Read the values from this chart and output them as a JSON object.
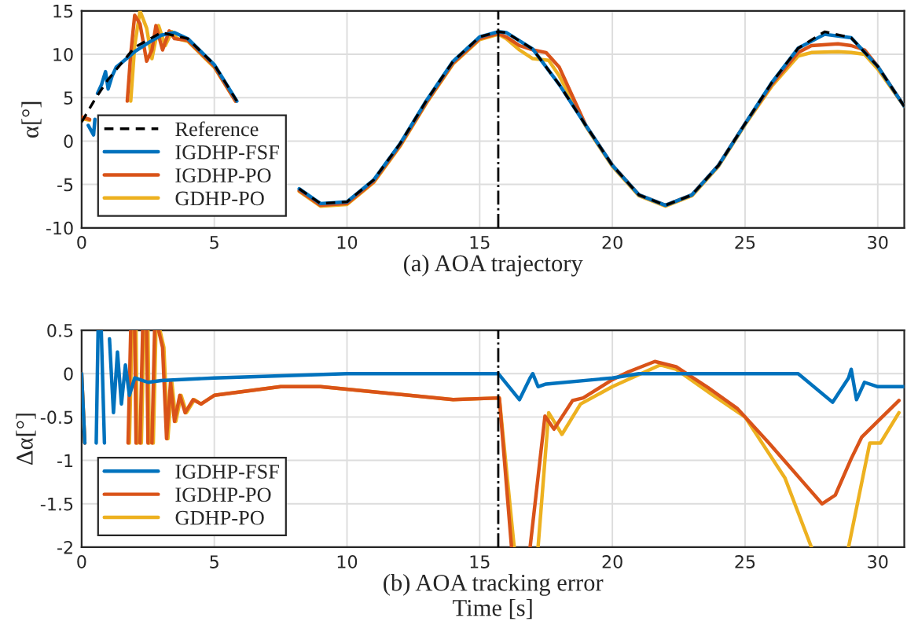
{
  "chart_data": [
    {
      "type": "line",
      "xlabel": "(a) AOA trajectory",
      "ylabel": "α[°]",
      "xlim": [
        0,
        31
      ],
      "xticks": [
        0,
        5,
        10,
        15,
        20,
        25,
        30
      ],
      "ylim": [
        -10,
        15
      ],
      "yticks": [
        -10,
        -5,
        0,
        5,
        10,
        15
      ],
      "grid": true,
      "legend": "lower left",
      "ref_lines": [
        {
          "axis": "x",
          "value": 15.7,
          "color": "#000000",
          "line_style": "dashdot"
        }
      ],
      "series": [
        {
          "name": "Reference",
          "color": "#000000",
          "line_style": "dashed",
          "x": [
            0,
            0.5,
            1,
            2,
            3,
            4,
            5,
            5.85,
            6,
            8.2,
            9,
            10,
            11,
            12,
            13,
            14,
            15,
            15.7,
            16,
            17,
            18,
            19,
            20,
            21,
            22,
            23,
            24,
            25,
            26,
            27,
            28,
            29,
            30,
            31
          ],
          "values": [
            2.2,
            4.8,
            7.1,
            10.8,
            12.5,
            11.8,
            8.8,
            4.6,
            null,
            -5.5,
            -7.2,
            -7.0,
            -4.5,
            -0.3,
            4.7,
            9.2,
            12.0,
            12.6,
            12.5,
            10.6,
            6.5,
            1.8,
            -2.8,
            -6.2,
            -7.4,
            -6.2,
            -2.8,
            2.0,
            6.7,
            10.7,
            12.6,
            11.9,
            8.6,
            4.0
          ]
        },
        {
          "name": "IGDHP-FSF",
          "color": "#0072bd",
          "x": [
            0.25,
            0.45,
            0.5,
            0.55,
            0.6,
            0.75,
            0.9,
            1.0,
            1.15,
            1.3,
            1.5,
            2,
            2.5,
            3,
            3.5,
            4,
            5,
            5.85,
            6,
            8.2,
            9,
            10,
            11,
            12,
            13,
            14,
            15,
            15.7,
            16,
            17,
            18,
            19,
            20,
            21,
            22,
            23,
            24,
            25,
            26,
            27,
            28,
            29,
            30,
            31
          ],
          "values": [
            1.8,
            0.7,
            2.5,
            null,
            5.5,
            6.5,
            8.0,
            6.0,
            7.5,
            8.5,
            9.0,
            10.3,
            11.3,
            12.2,
            12.5,
            11.8,
            8.8,
            4.6,
            null,
            -5.5,
            -7.2,
            -7.0,
            -4.5,
            -0.3,
            4.7,
            9.2,
            12.0,
            12.6,
            12.5,
            10.6,
            6.5,
            1.8,
            -2.8,
            -6.2,
            -7.4,
            -6.2,
            -2.8,
            2.0,
            6.7,
            10.7,
            12.3,
            11.9,
            8.6,
            4.0
          ]
        },
        {
          "name": "IGDHP-PO",
          "color": "#d95319",
          "x": [
            0,
            0.3,
            0.5,
            1.72,
            1.85,
            2.0,
            2.2,
            2.45,
            2.65,
            2.8,
            3.05,
            3.3,
            3.5,
            4,
            5,
            5.8,
            6,
            8.2,
            9,
            10,
            11,
            12,
            13,
            14,
            15,
            15.7,
            16,
            16.5,
            17,
            17.5,
            18,
            19,
            20,
            21,
            22,
            23,
            24,
            25,
            26,
            27,
            27.5,
            28.5,
            29,
            29.5,
            30,
            31
          ],
          "values": [
            2.8,
            2.5,
            null,
            4.6,
            10.0,
            14.5,
            13.5,
            9.2,
            10.5,
            13.3,
            10.5,
            12.7,
            11.8,
            11.6,
            8.6,
            4.6,
            null,
            -5.7,
            -7.4,
            -7.2,
            -4.7,
            -0.5,
            4.5,
            9.0,
            11.8,
            12.4,
            12.0,
            11.0,
            10.5,
            10.2,
            8.5,
            1.8,
            -2.8,
            -6.2,
            -7.4,
            -6.2,
            -2.8,
            2.0,
            6.5,
            10.2,
            11.0,
            11.2,
            11.0,
            10.5,
            8.6,
            4.0
          ]
        },
        {
          "name": "GDHP-PO",
          "color": "#edb120",
          "x": [
            0,
            0.3,
            0.5,
            1.85,
            2.0,
            2.2,
            2.45,
            2.65,
            2.9,
            3.15,
            3.4,
            3.6,
            4,
            5,
            5.8,
            6,
            8.2,
            9,
            10,
            11,
            12,
            13,
            14,
            15,
            15.7,
            16,
            16.5,
            17,
            17.6,
            18,
            19,
            20,
            21,
            22,
            23,
            24,
            25,
            26,
            27,
            27.5,
            28.5,
            29,
            29.5,
            30,
            31
          ],
          "values": [
            2.6,
            2.4,
            null,
            4.6,
            11.0,
            15.0,
            13.0,
            9.5,
            13.3,
            11.0,
            12.6,
            11.8,
            11.5,
            8.5,
            4.6,
            null,
            -5.8,
            -7.5,
            -7.3,
            -4.8,
            -0.6,
            4.4,
            8.9,
            11.7,
            12.3,
            11.8,
            10.5,
            9.5,
            9.3,
            7.5,
            1.7,
            -2.9,
            -6.3,
            -7.5,
            -6.3,
            -2.9,
            1.9,
            6.3,
            9.8,
            10.2,
            10.3,
            10.2,
            10.0,
            8.3,
            4.0
          ]
        }
      ]
    },
    {
      "type": "line",
      "xlabel": "(b) AOA tracking error\nTime [s]",
      "ylabel": "Δα[°]",
      "xlim": [
        0,
        31
      ],
      "xticks": [
        0,
        5,
        10,
        15,
        20,
        25,
        30
      ],
      "ylim": [
        -2,
        0.5
      ],
      "yticks": [
        -2,
        -1.5,
        -1,
        -0.5,
        0,
        0.5
      ],
      "grid": true,
      "legend": "lower left",
      "ref_lines": [
        {
          "axis": "x",
          "value": 15.7,
          "color": "#000000",
          "line_style": "dashdot"
        }
      ],
      "series": [
        {
          "name": "IGDHP-FSF",
          "color": "#0072bd",
          "x": [
            0,
            0.12,
            0.3,
            0.55,
            0.62,
            0.68,
            0.74,
            0.86,
            0.95,
            1.05,
            1.2,
            1.35,
            1.5,
            1.65,
            1.8,
            2.0,
            2.5,
            3,
            5,
            10,
            15.7,
            16.5,
            16.9,
            17.0,
            17.2,
            17.5,
            20,
            21,
            27,
            28.3,
            28.9,
            29.0,
            29.2,
            29.5,
            30,
            31
          ],
          "values": [
            0,
            -0.8,
            null,
            -0.8,
            0.5,
            null,
            0.5,
            -0.8,
            null,
            0.4,
            -0.45,
            0.25,
            -0.35,
            0.1,
            -0.25,
            -0.05,
            -0.1,
            -0.08,
            -0.05,
            0,
            0,
            -0.3,
            -0.05,
            0.0,
            -0.15,
            -0.12,
            -0.05,
            0,
            0,
            -0.33,
            -0.05,
            0.05,
            -0.3,
            -0.1,
            -0.15,
            -0.15
          ]
        },
        {
          "name": "IGDHP-PO",
          "color": "#d95319",
          "x": [
            0,
            0.12,
            0.3,
            1.75,
            1.85,
            1.9,
            2.0,
            2.05,
            2.15,
            2.2,
            2.3,
            2.35,
            2.45,
            2.5,
            2.6,
            2.65,
            2.75,
            2.8,
            2.9,
            3.05,
            3.2,
            3.35,
            3.5,
            3.7,
            3.9,
            4.2,
            4.5,
            5,
            7.5,
            9,
            14,
            15.74,
            16.2,
            16.5,
            16.9,
            17.46,
            17.8,
            18.5,
            18.9,
            20,
            20.6,
            21.6,
            22.4,
            23.6,
            24.7,
            25.9,
            27.1,
            27.9,
            28.4,
            29.0,
            29.4,
            30.0,
            30.8
          ],
          "values": [
            0,
            -0.8,
            null,
            -0.8,
            0.5,
            null,
            0.5,
            -0.8,
            null,
            -0.8,
            0.5,
            null,
            0.5,
            -0.8,
            null,
            -0.8,
            0.5,
            null,
            0.5,
            0.3,
            -0.75,
            -0.1,
            -0.55,
            -0.25,
            -0.45,
            -0.3,
            -0.35,
            -0.25,
            -0.15,
            -0.15,
            -0.3,
            -0.28,
            -2,
            null,
            -2,
            -0.49,
            -0.64,
            -0.31,
            -0.28,
            -0.07,
            0.02,
            0.14,
            0.08,
            -0.16,
            -0.4,
            -0.8,
            -1.22,
            -1.5,
            -1.4,
            -0.98,
            -0.73,
            -0.55,
            -0.31
          ]
        },
        {
          "name": "GDHP-PO",
          "color": "#edb120",
          "x": [
            0,
            0.12,
            0.3,
            1.8,
            1.9,
            1.95,
            2.05,
            2.1,
            2.2,
            2.25,
            2.35,
            2.4,
            2.5,
            2.55,
            2.65,
            2.7,
            2.8,
            2.85,
            2.95,
            3.1,
            3.25,
            3.4,
            3.55,
            3.75,
            3.95,
            4.25,
            4.5,
            5,
            7.5,
            9,
            14,
            15.74,
            16.3,
            16.6,
            17.2,
            17.6,
            18.1,
            18.8,
            20,
            21.8,
            22.4,
            23.8,
            25,
            26.5,
            27.5,
            28.2,
            28.9,
            29.7,
            30.1,
            30.8
          ],
          "values": [
            0,
            -0.8,
            null,
            -0.8,
            0.5,
            null,
            0.5,
            -0.8,
            null,
            -0.8,
            0.5,
            null,
            0.5,
            -0.8,
            null,
            -0.8,
            0.5,
            null,
            0.5,
            0.3,
            -0.75,
            -0.1,
            -0.55,
            -0.25,
            -0.45,
            -0.3,
            -0.35,
            -0.25,
            -0.15,
            -0.15,
            -0.3,
            -0.28,
            -2,
            null,
            -2,
            -0.45,
            -0.7,
            -0.35,
            -0.15,
            0.1,
            0.05,
            -0.25,
            -0.5,
            -1.2,
            -2,
            null,
            -2,
            -0.8,
            -0.8,
            -0.45
          ]
        }
      ]
    }
  ]
}
